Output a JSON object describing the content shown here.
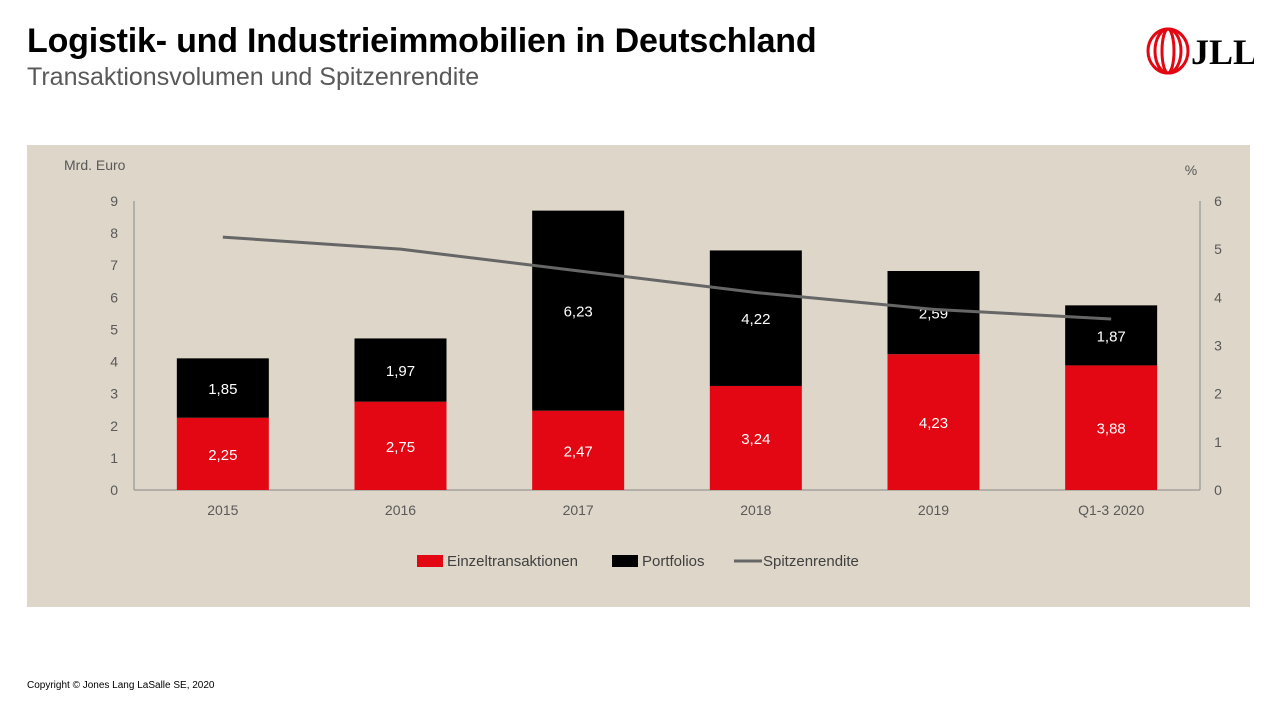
{
  "header": {
    "title": "Logistik- und Industrieimmobilien in Deutschland",
    "subtitle": "Transaktionsvolumen und Spitzenrendite",
    "logo_text": "JLL"
  },
  "footer": {
    "copyright": "Copyright © Jones Lang LaSalle SE, 2020"
  },
  "colors": {
    "einzel": "#e30613",
    "portfolio": "#000000",
    "line": "#666666",
    "panel": "#ddd6c9",
    "logo": "#e30613"
  },
  "chart_data": {
    "type": "bar",
    "stacked": true,
    "categories": [
      "2015",
      "2016",
      "2017",
      "2018",
      "2019",
      "Q1-3 2020"
    ],
    "series": [
      {
        "name": "Einzeltransaktionen",
        "values": [
          2.25,
          2.75,
          2.47,
          3.24,
          4.23,
          3.88
        ],
        "labels": [
          "2,25",
          "2,75",
          "2,47",
          "3,24",
          "4,23",
          "3,88"
        ],
        "color": "#e30613"
      },
      {
        "name": "Portfolios",
        "values": [
          1.85,
          1.97,
          6.23,
          4.22,
          2.59,
          1.87
        ],
        "labels": [
          "1,85",
          "1,97",
          "6,23",
          "4,22",
          "2,59",
          "1,87"
        ],
        "color": "#000000"
      }
    ],
    "line_series": {
      "name": "Spitzenrendite",
      "axis": "right",
      "values": [
        5.25,
        5.0,
        4.55,
        4.1,
        3.75,
        3.55
      ],
      "color": "#666666"
    },
    "ylabel": "Mrd. Euro",
    "ylim": [
      0,
      9
    ],
    "y_ticks": [
      "0",
      "1",
      "2",
      "3",
      "4",
      "5",
      "6",
      "7",
      "8",
      "9"
    ],
    "y2label": "%",
    "y2lim": [
      0,
      6
    ],
    "y2_ticks": [
      "0",
      "1",
      "2",
      "3",
      "4",
      "5",
      "6"
    ],
    "legend_position": "bottom",
    "grid": false
  }
}
